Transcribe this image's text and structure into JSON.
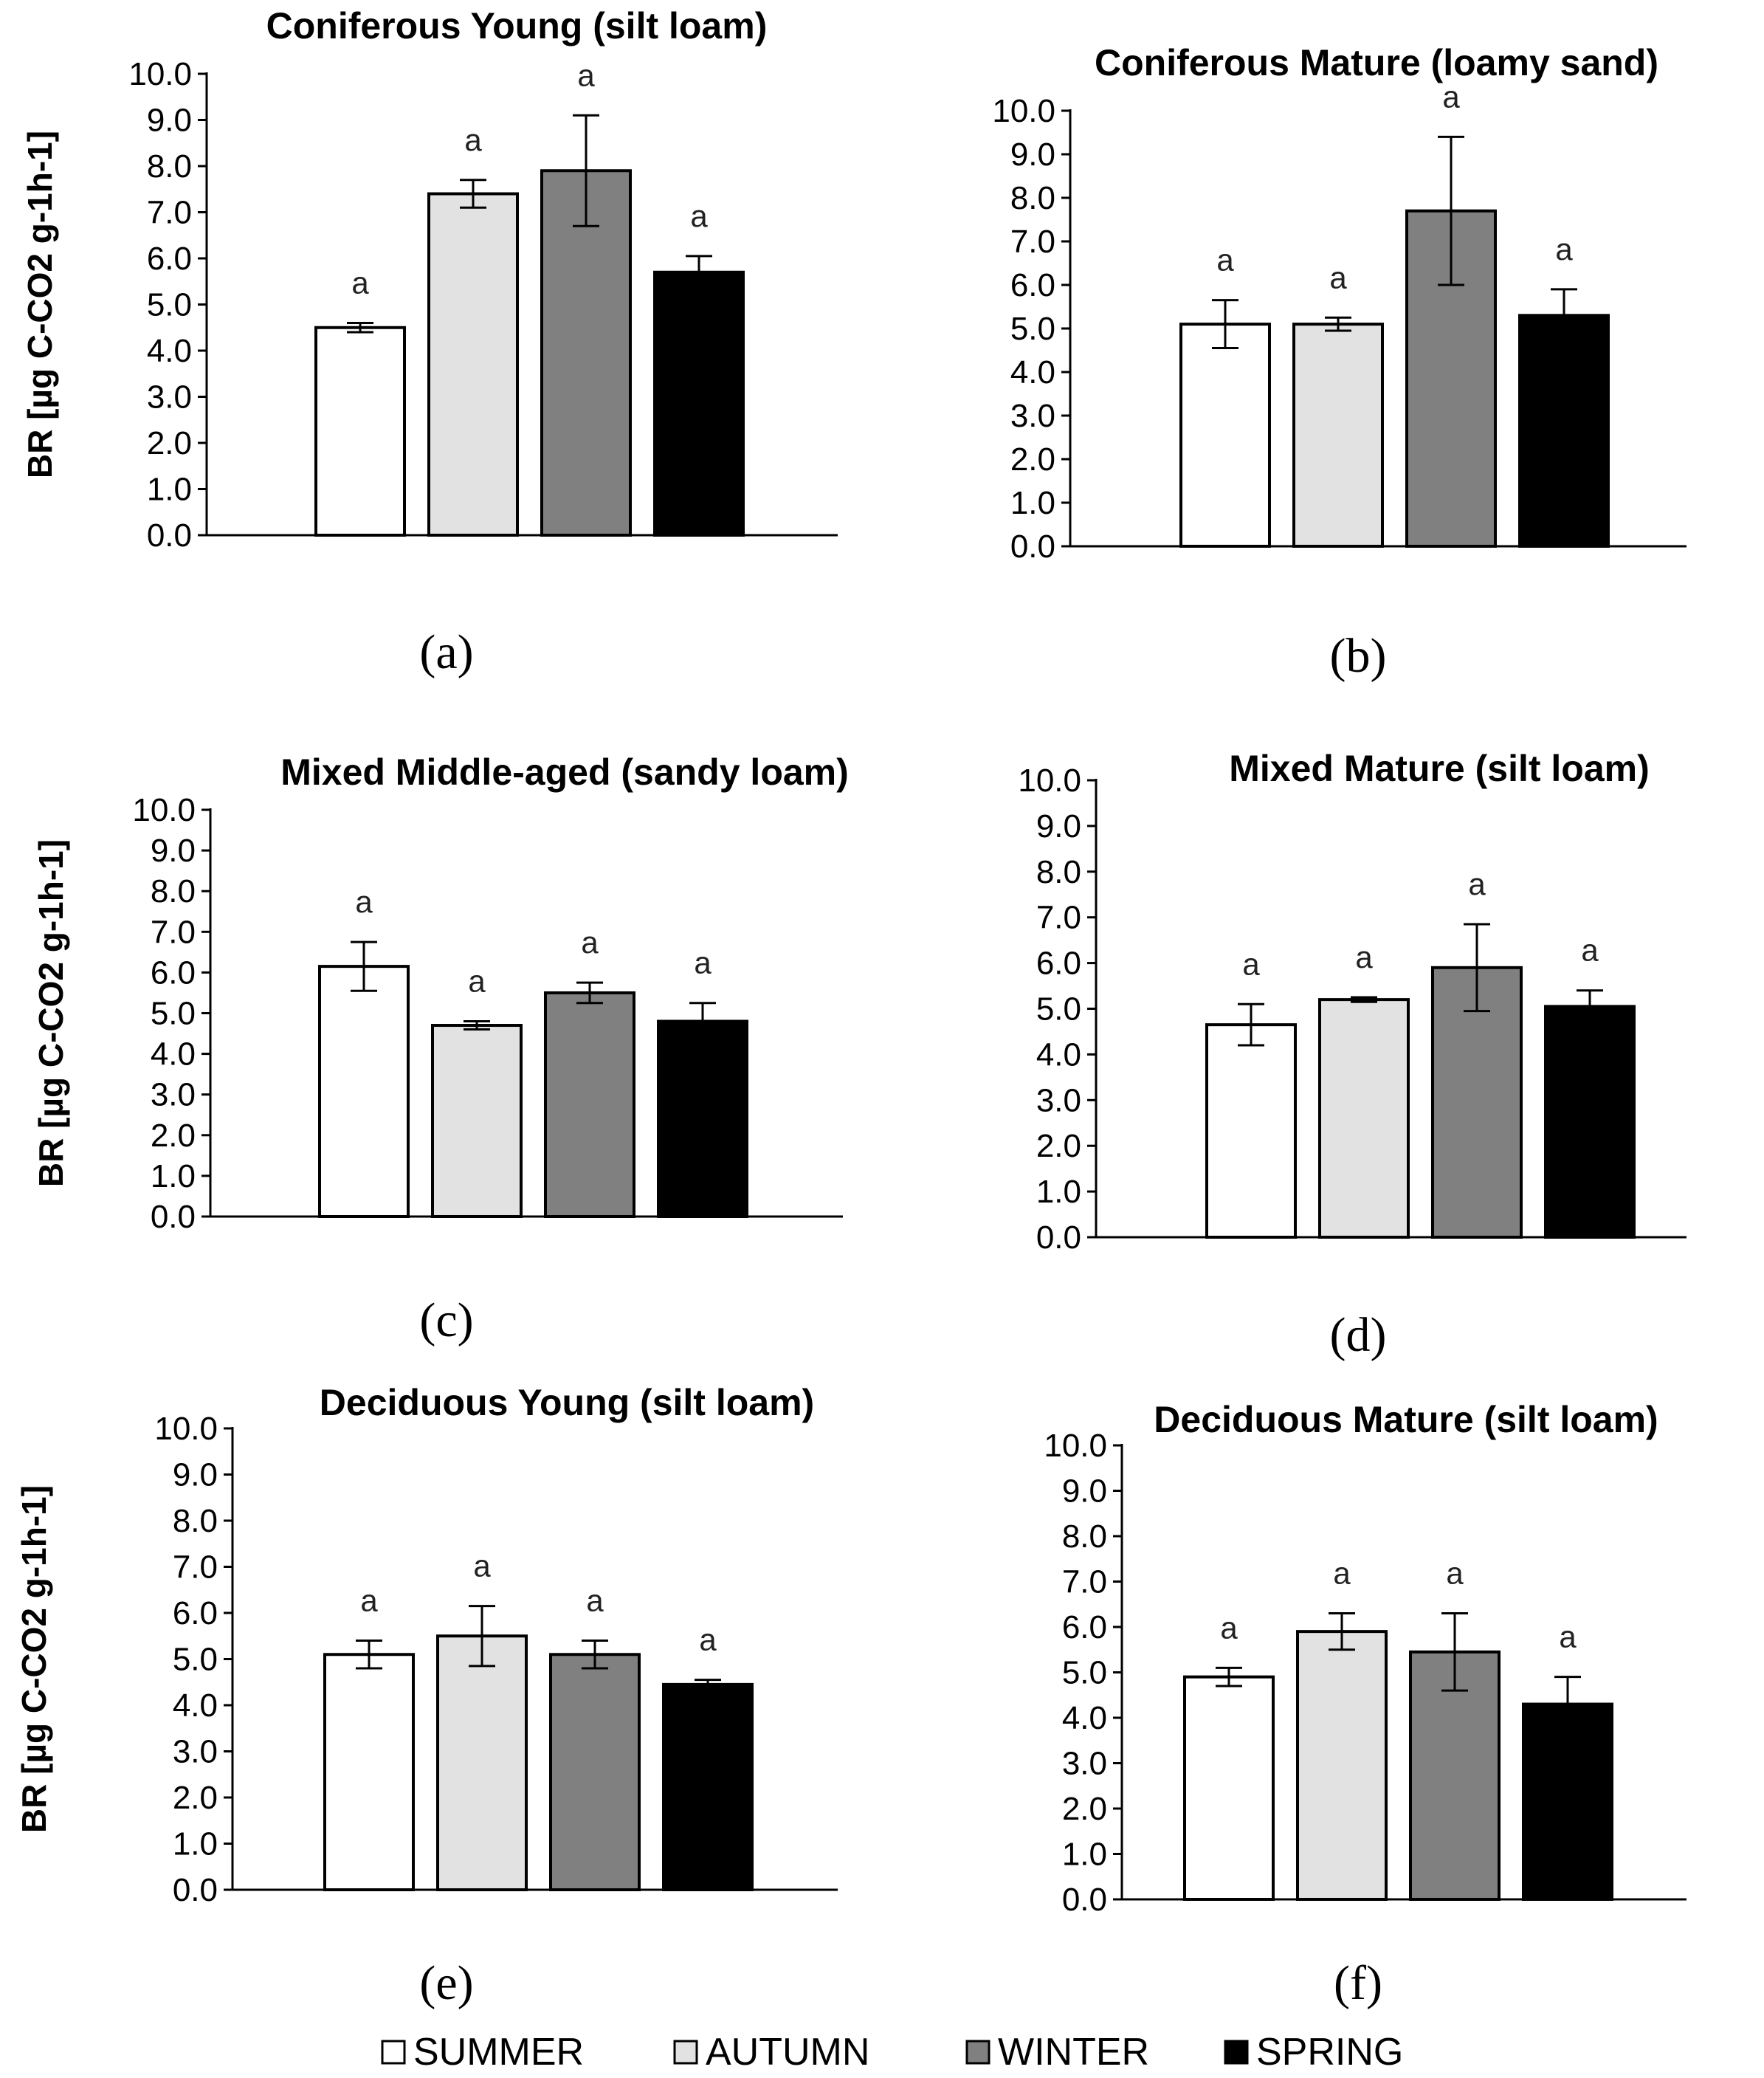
{
  "legend": [
    {
      "label": "SUMMER",
      "color": "#ffffff"
    },
    {
      "label": "AUTUMN",
      "color": "#e2e2e2"
    },
    {
      "label": "WINTER",
      "color": "#808080"
    },
    {
      "label": "SPRING",
      "color": "#000000"
    }
  ],
  "chart_data": [
    {
      "type": "bar",
      "panel": "(a)",
      "title": "Coniferous Young (silt loam)",
      "ylabel": "BR [µg C-CO2 g-1h-1]",
      "ylim": [
        0,
        10
      ],
      "yticks": [
        "0.0",
        "1.0",
        "2.0",
        "3.0",
        "4.0",
        "5.0",
        "6.0",
        "7.0",
        "8.0",
        "9.0",
        "10.0"
      ],
      "categories": [
        "SUMMER",
        "AUTUMN",
        "WINTER",
        "SPRING"
      ],
      "values": [
        4.5,
        7.4,
        7.9,
        5.7
      ],
      "errors": [
        0.1,
        0.3,
        1.2,
        0.35
      ],
      "significance": [
        "a",
        "a",
        "a",
        "a"
      ]
    },
    {
      "type": "bar",
      "panel": "(b)",
      "title": "Coniferous Mature (loamy sand)",
      "ylabel": "",
      "ylim": [
        0,
        10
      ],
      "yticks": [
        "0.0",
        "1.0",
        "2.0",
        "3.0",
        "4.0",
        "5.0",
        "6.0",
        "7.0",
        "8.0",
        "9.0",
        "10.0"
      ],
      "categories": [
        "SUMMER",
        "AUTUMN",
        "WINTER",
        "SPRING"
      ],
      "values": [
        5.1,
        5.1,
        7.7,
        5.3
      ],
      "errors": [
        0.55,
        0.15,
        1.7,
        0.6
      ],
      "significance": [
        "a",
        "a",
        "a",
        "a"
      ]
    },
    {
      "type": "bar",
      "panel": "(c)",
      "title": "Mixed Middle-aged (sandy loam)",
      "ylabel": "BR [µg C-CO2 g-1h-1]",
      "ylim": [
        0,
        10
      ],
      "yticks": [
        "0.0",
        "1.0",
        "2.0",
        "3.0",
        "4.0",
        "5.0",
        "6.0",
        "7.0",
        "8.0",
        "9.0",
        "10.0"
      ],
      "categories": [
        "SUMMER",
        "AUTUMN",
        "WINTER",
        "SPRING"
      ],
      "values": [
        6.15,
        4.7,
        5.5,
        4.8
      ],
      "errors": [
        0.6,
        0.1,
        0.25,
        0.45
      ],
      "significance": [
        "a",
        "a",
        "a",
        "a"
      ]
    },
    {
      "type": "bar",
      "panel": "(d)",
      "title": "Mixed Mature (silt loam)",
      "ylabel": "",
      "ylim": [
        0,
        10
      ],
      "yticks": [
        "0.0",
        "1.0",
        "2.0",
        "3.0",
        "4.0",
        "5.0",
        "6.0",
        "7.0",
        "8.0",
        "9.0",
        "10.0"
      ],
      "categories": [
        "SUMMER",
        "AUTUMN",
        "WINTER",
        "SPRING"
      ],
      "values": [
        4.65,
        5.2,
        5.9,
        5.05
      ],
      "errors": [
        0.45,
        0.05,
        0.95,
        0.35
      ],
      "significance": [
        "a",
        "a",
        "a",
        "a"
      ]
    },
    {
      "type": "bar",
      "panel": "(e)",
      "title": "Deciduous Young (silt loam)",
      "ylabel": "BR [µg C-CO2 g-1h-1]",
      "ylim": [
        0,
        10
      ],
      "yticks": [
        "0.0",
        "1.0",
        "2.0",
        "3.0",
        "4.0",
        "5.0",
        "6.0",
        "7.0",
        "8.0",
        "9.0",
        "10.0"
      ],
      "categories": [
        "SUMMER",
        "AUTUMN",
        "WINTER",
        "SPRING"
      ],
      "values": [
        5.1,
        5.5,
        5.1,
        4.45
      ],
      "errors": [
        0.3,
        0.65,
        0.3,
        0.1
      ],
      "significance": [
        "a",
        "a",
        "a",
        "a"
      ]
    },
    {
      "type": "bar",
      "panel": "(f)",
      "title": "Deciduous Mature (silt loam)",
      "ylabel": "",
      "ylim": [
        0,
        10
      ],
      "yticks": [
        "0.0",
        "1.0",
        "2.0",
        "3.0",
        "4.0",
        "5.0",
        "6.0",
        "7.0",
        "8.0",
        "9.0",
        "10.0"
      ],
      "categories": [
        "SUMMER",
        "AUTUMN",
        "WINTER",
        "SPRING"
      ],
      "values": [
        4.9,
        5.9,
        5.45,
        4.3
      ],
      "errors": [
        0.2,
        0.4,
        0.85,
        0.6
      ],
      "significance": [
        "a",
        "a",
        "a",
        "a"
      ]
    }
  ]
}
